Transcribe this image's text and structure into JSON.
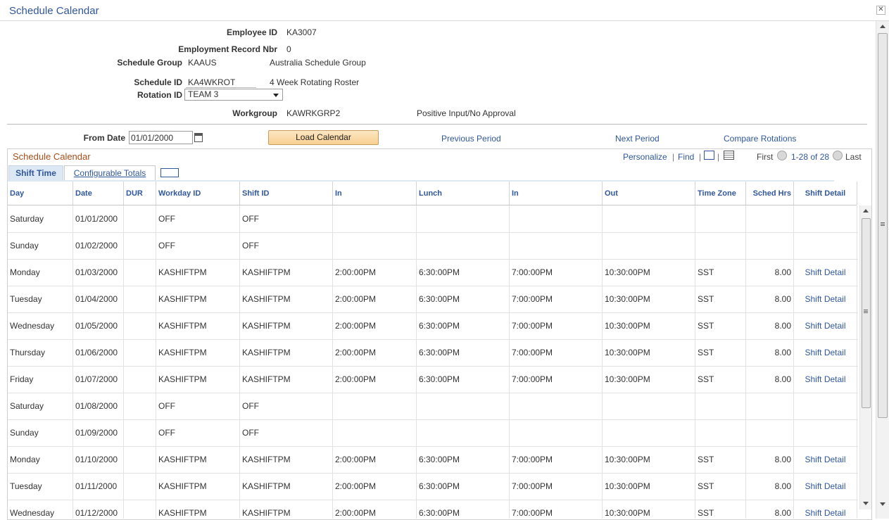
{
  "window": {
    "title": "Schedule Calendar",
    "close_glyph": "✕"
  },
  "header": {
    "employee_id_label": "Employee ID",
    "employee_id": "KA3007",
    "empl_rcd_label": "Employment Record Nbr",
    "empl_rcd": "0",
    "schedule_group_label": "Schedule Group",
    "schedule_group": "KAAUS",
    "schedule_group_desc": "Australia Schedule Group",
    "schedule_id_label": "Schedule ID",
    "schedule_id": "KA4WKROT",
    "schedule_id_desc": "4 Week Rotating Roster",
    "rotation_id_label": "Rotation ID",
    "rotation_id": "TEAM 3",
    "workgroup_label": "Workgroup",
    "workgroup": "KAWRKGRP2",
    "workgroup_desc": "Positive Input/No Approval"
  },
  "controls": {
    "from_date_label": "From Date",
    "from_date": "01/01/2000",
    "load_calendar": "Load Calendar",
    "previous_period": "Previous Period",
    "next_period": "Next Period",
    "compare_rotations": "Compare Rotations"
  },
  "grid": {
    "title": "Schedule Calendar",
    "personalize": "Personalize",
    "find": "Find",
    "sep": "|",
    "first": "First",
    "range": "1-28 of 28",
    "last": "Last",
    "tabs": [
      "Shift Time",
      "Configurable Totals"
    ],
    "columns": [
      "Day",
      "Date",
      "DUR",
      "Workday ID",
      "Shift ID",
      "In",
      "Lunch",
      "In",
      "Out",
      "Time Zone",
      "Sched Hrs",
      "Shift Detail"
    ],
    "rows": [
      [
        "Saturday",
        "01/01/2000",
        "",
        "OFF",
        "OFF",
        "",
        "",
        "",
        "",
        "",
        "",
        ""
      ],
      [
        "Sunday",
        "01/02/2000",
        "",
        "OFF",
        "OFF",
        "",
        "",
        "",
        "",
        "",
        "",
        ""
      ],
      [
        "Monday",
        "01/03/2000",
        "",
        "KASHIFTPM",
        "KASHIFTPM",
        "2:00:00PM",
        "6:30:00PM",
        "7:00:00PM",
        "10:30:00PM",
        "SST",
        "8.00",
        "Shift Detail"
      ],
      [
        "Tuesday",
        "01/04/2000",
        "",
        "KASHIFTPM",
        "KASHIFTPM",
        "2:00:00PM",
        "6:30:00PM",
        "7:00:00PM",
        "10:30:00PM",
        "SST",
        "8.00",
        "Shift Detail"
      ],
      [
        "Wednesday",
        "01/05/2000",
        "",
        "KASHIFTPM",
        "KASHIFTPM",
        "2:00:00PM",
        "6:30:00PM",
        "7:00:00PM",
        "10:30:00PM",
        "SST",
        "8.00",
        "Shift Detail"
      ],
      [
        "Thursday",
        "01/06/2000",
        "",
        "KASHIFTPM",
        "KASHIFTPM",
        "2:00:00PM",
        "6:30:00PM",
        "7:00:00PM",
        "10:30:00PM",
        "SST",
        "8.00",
        "Shift Detail"
      ],
      [
        "Friday",
        "01/07/2000",
        "",
        "KASHIFTPM",
        "KASHIFTPM",
        "2:00:00PM",
        "6:30:00PM",
        "7:00:00PM",
        "10:30:00PM",
        "SST",
        "8.00",
        "Shift Detail"
      ],
      [
        "Saturday",
        "01/08/2000",
        "",
        "OFF",
        "OFF",
        "",
        "",
        "",
        "",
        "",
        "",
        ""
      ],
      [
        "Sunday",
        "01/09/2000",
        "",
        "OFF",
        "OFF",
        "",
        "",
        "",
        "",
        "",
        "",
        ""
      ],
      [
        "Monday",
        "01/10/2000",
        "",
        "KASHIFTPM",
        "KASHIFTPM",
        "2:00:00PM",
        "6:30:00PM",
        "7:00:00PM",
        "10:30:00PM",
        "SST",
        "8.00",
        "Shift Detail"
      ],
      [
        "Tuesday",
        "01/11/2000",
        "",
        "KASHIFTPM",
        "KASHIFTPM",
        "2:00:00PM",
        "6:30:00PM",
        "7:00:00PM",
        "10:30:00PM",
        "SST",
        "8.00",
        "Shift Detail"
      ],
      [
        "Wednesday",
        "01/12/2000",
        "",
        "KASHIFTPM",
        "KASHIFTPM",
        "2:00:00PM",
        "6:30:00PM",
        "7:00:00PM",
        "10:30:00PM",
        "SST",
        "8.00",
        "Shift Detail"
      ]
    ]
  },
  "colors": {
    "link": "#30579b",
    "grid_title": "#a84e1a",
    "button_top": "#fde7c2",
    "button_bottom": "#f8cf91"
  },
  "icons": {
    "calendar": "calendar-icon",
    "zoom": "zoom-icon",
    "download": "download-icon",
    "view_all": "view-all-icon"
  }
}
